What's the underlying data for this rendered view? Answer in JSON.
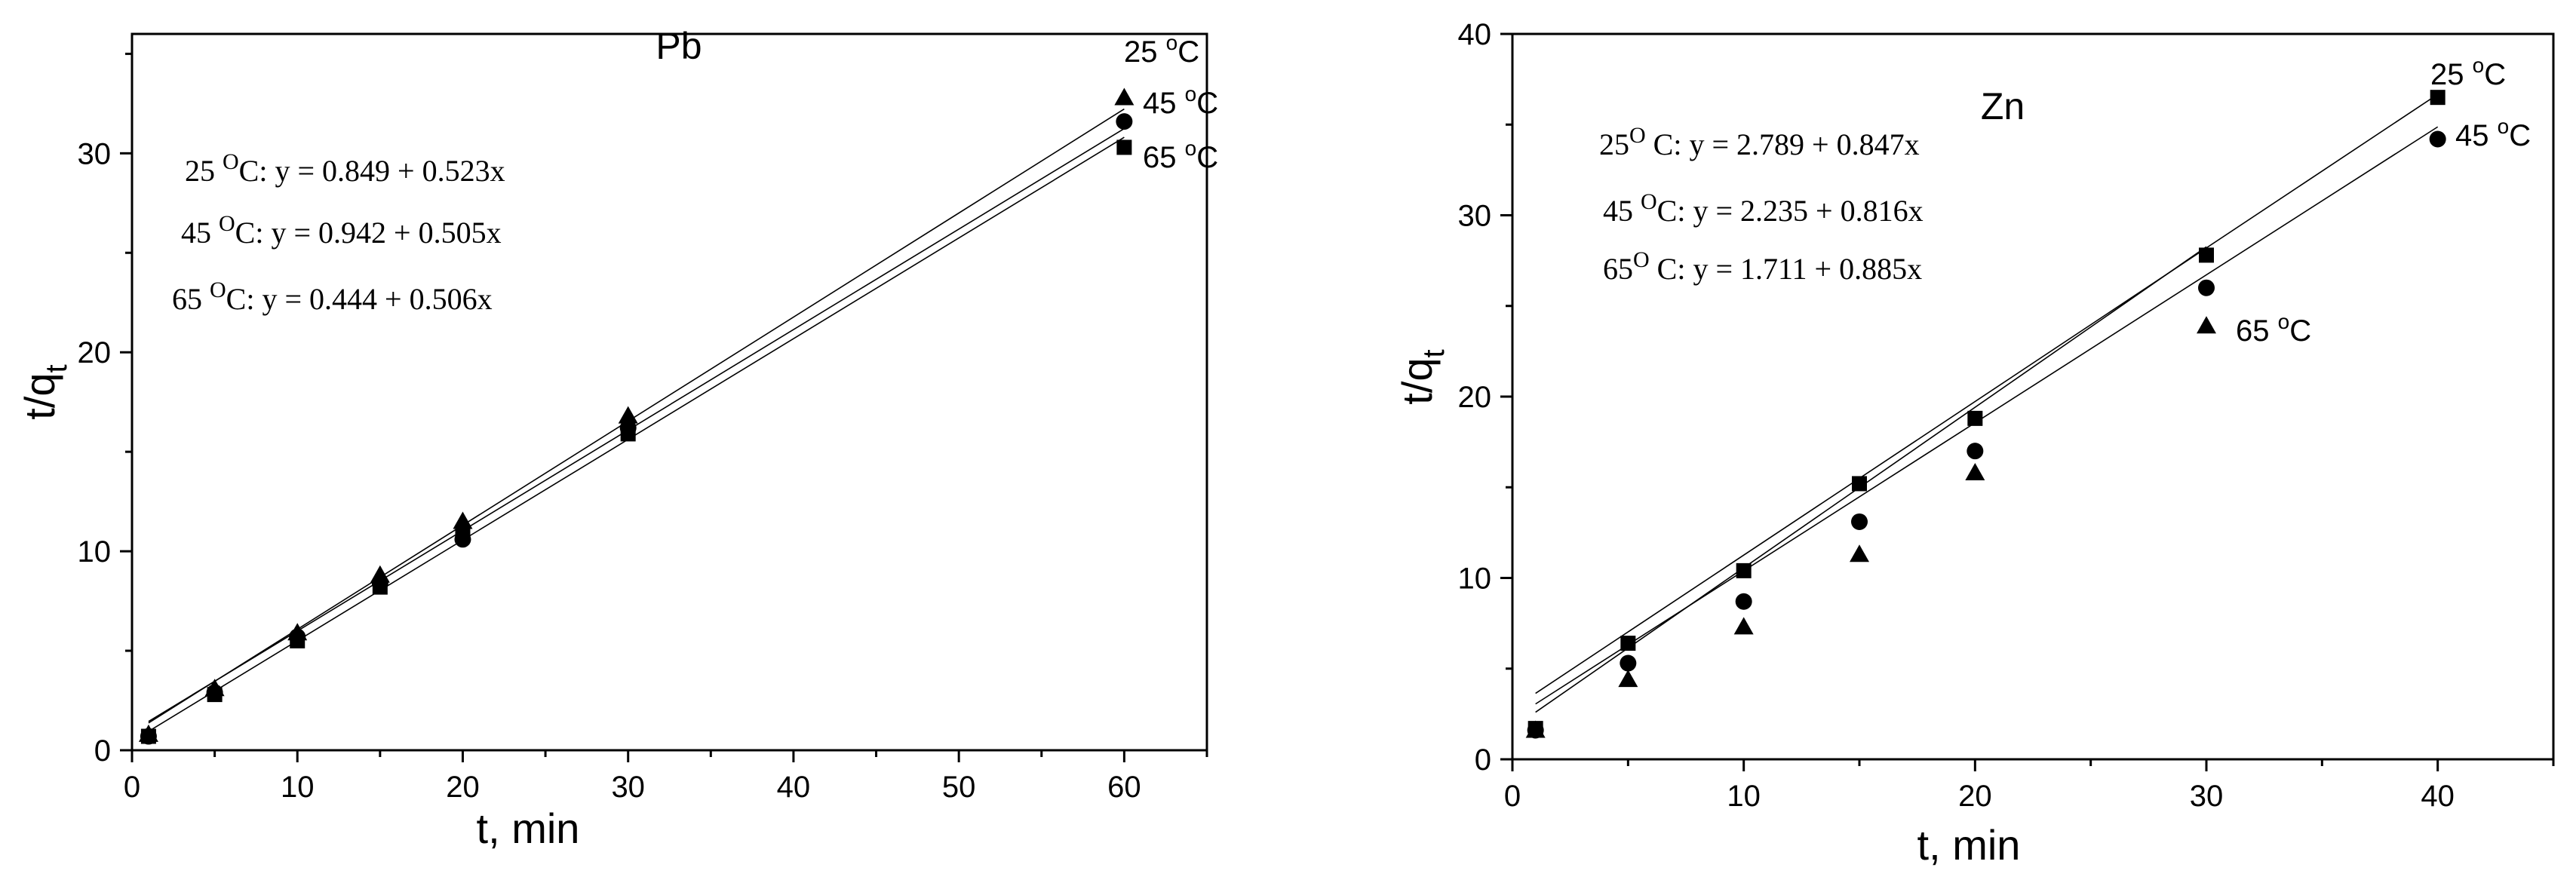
{
  "chart_data": [
    {
      "type": "scatter",
      "title": "Pb",
      "xlabel": "t, min",
      "ylabel": {
        "base": "t/q",
        "sub": "t"
      },
      "xlim": [
        0,
        65
      ],
      "ylim": [
        0,
        36
      ],
      "xticks": [
        0,
        10,
        20,
        30,
        40,
        50,
        60
      ],
      "yticks": [
        0,
        10,
        20,
        30
      ],
      "series": [
        {
          "name": "25 °C",
          "label": {
            "num": "25 ",
            "sup": "o",
            "unit": "C"
          },
          "marker": "triangle",
          "x": [
            1,
            5,
            10,
            15,
            20,
            30,
            60
          ],
          "y": [
            0.8,
            3.1,
            5.9,
            8.8,
            11.5,
            16.8,
            32.8
          ],
          "fit": {
            "intercept": 0.849,
            "slope": 0.523
          },
          "equation": {
            "temp": "25 ",
            "sup": "O",
            "text": "C: y = 0.849 + 0.523x"
          }
        },
        {
          "name": "45 °C",
          "label": {
            "num": "45 ",
            "sup": "o",
            "unit": "C"
          },
          "marker": "circle",
          "x": [
            1,
            5,
            10,
            15,
            20,
            30,
            60
          ],
          "y": [
            0.7,
            2.9,
            5.7,
            8.4,
            10.6,
            16.2,
            31.6
          ],
          "fit": {
            "intercept": 0.942,
            "slope": 0.505
          },
          "equation": {
            "temp": "45 ",
            "sup": "O",
            "text": "C: y = 0.942 + 0.505x"
          }
        },
        {
          "name": "65 °C",
          "label": {
            "num": "65 ",
            "sup": "o",
            "unit": "C"
          },
          "marker": "square",
          "x": [
            1,
            5,
            10,
            15,
            20,
            30,
            60
          ],
          "y": [
            0.7,
            2.8,
            5.5,
            8.2,
            10.9,
            15.9,
            30.3
          ],
          "fit": {
            "intercept": 0.444,
            "slope": 0.506
          },
          "equation": {
            "temp": "65 ",
            "sup": "O",
            "text": "C: y = 0.444 + 0.506x"
          }
        }
      ]
    },
    {
      "type": "scatter",
      "title": "Zn",
      "xlabel": "t, min",
      "ylabel": {
        "base": "t/q",
        "sub": "t"
      },
      "xlim": [
        0,
        45
      ],
      "ylim": [
        0,
        40
      ],
      "xticks": [
        0,
        10,
        20,
        30,
        40
      ],
      "yticks": [
        0,
        10,
        20,
        30,
        40
      ],
      "series": [
        {
          "name": "25 °C",
          "label": {
            "num": "25 ",
            "sup": "o",
            "unit": "C"
          },
          "marker": "square",
          "x": [
            1,
            5,
            10,
            15,
            20,
            30,
            40
          ],
          "y": [
            1.7,
            6.4,
            10.4,
            15.2,
            18.8,
            27.8,
            36.5
          ],
          "fit": {
            "intercept": 2.789,
            "slope": 0.847
          },
          "equation": {
            "temp": "25",
            "sup": "O",
            "text": " C: y = 2.789 + 0.847x"
          }
        },
        {
          "name": "45 °C",
          "label": {
            "num": "45 ",
            "sup": "o",
            "unit": "C"
          },
          "marker": "circle",
          "x": [
            1,
            5,
            10,
            15,
            20,
            30,
            40
          ],
          "y": [
            1.6,
            5.3,
            8.7,
            13.1,
            17.0,
            26.0,
            34.2
          ],
          "fit": {
            "intercept": 2.235,
            "slope": 0.816
          },
          "equation": {
            "temp": "45 ",
            "sup": "O",
            "text": "C: y = 2.235 + 0.816x"
          }
        },
        {
          "name": "65 °C",
          "label": {
            "num": "65 ",
            "sup": "o",
            "unit": "C"
          },
          "marker": "triangle",
          "x": [
            1,
            5,
            10,
            15,
            20,
            30
          ],
          "y": [
            1.6,
            4.4,
            7.3,
            11.3,
            15.8,
            23.9
          ],
          "fit": {
            "intercept": 1.711,
            "slope": 0.885
          },
          "equation": {
            "temp": "65",
            "sup": "O",
            "text": " C: y = 1.711 + 0.885x"
          }
        }
      ]
    }
  ]
}
